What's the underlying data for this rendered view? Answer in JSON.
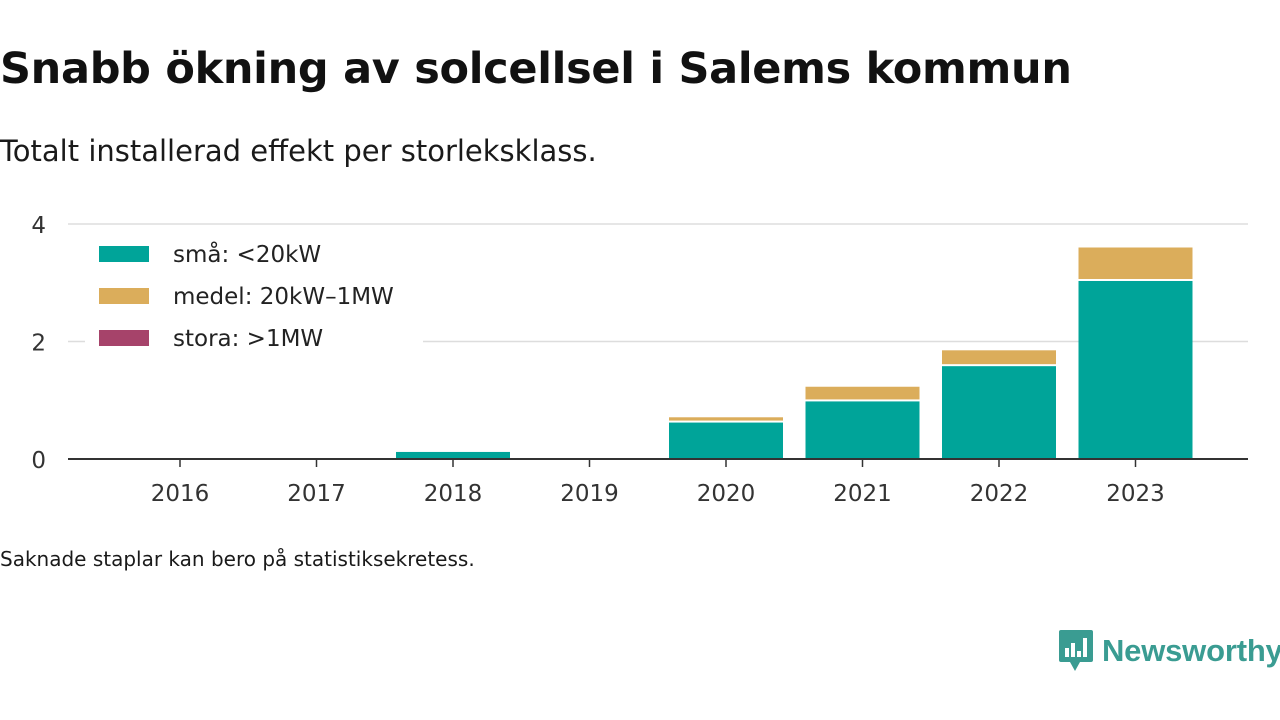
{
  "title": "Snabb ökning av solcellsel i Salems kommun",
  "subtitle": "Totalt installerad effekt per storleksklass.",
  "footnote": "Saknade staplar kan bero på statistiksekretess.",
  "brand": {
    "name": "Newsworthy",
    "icon": "newsworthy-logo-icon",
    "color": "#3a9c92"
  },
  "chart_data": {
    "type": "bar",
    "stacked": true,
    "categories": [
      "2016",
      "2017",
      "2018",
      "2019",
      "2020",
      "2021",
      "2022",
      "2023"
    ],
    "series": [
      {
        "name": "små: <20kW",
        "color": "#00a499",
        "values": [
          0,
          0,
          0.12,
          0,
          0.62,
          0.98,
          1.58,
          3.03
        ]
      },
      {
        "name": "medel: 20kW–1MW",
        "color": "#dbad5b",
        "values": [
          0,
          0,
          0,
          0,
          0.09,
          0.25,
          0.27,
          0.57
        ]
      },
      {
        "name": "stora: >1MW",
        "color": "#a6436a",
        "values": [
          0,
          0,
          0,
          0,
          0,
          0,
          0,
          0
        ]
      }
    ],
    "ylim": [
      0,
      4
    ],
    "yticks": [
      0,
      2,
      4
    ],
    "xlabel": "",
    "ylabel": "",
    "grid": true,
    "legend_position": "top-left"
  }
}
